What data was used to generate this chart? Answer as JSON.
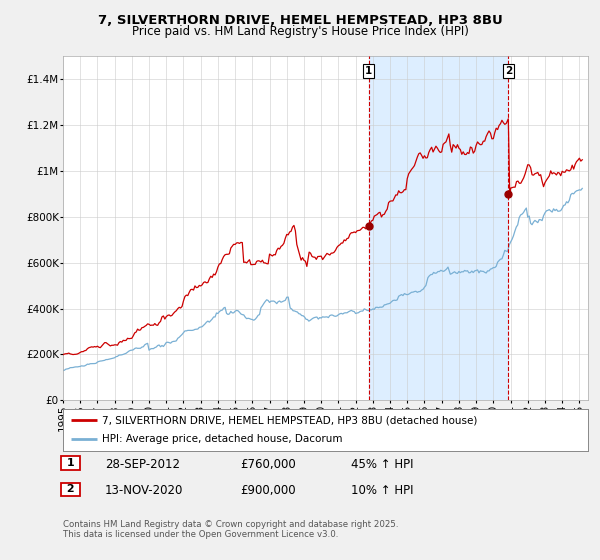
{
  "title_line1": "7, SILVERTHORN DRIVE, HEMEL HEMPSTEAD, HP3 8BU",
  "title_line2": "Price paid vs. HM Land Registry's House Price Index (HPI)",
  "ylim": [
    0,
    1500000
  ],
  "yticks": [
    0,
    200000,
    400000,
    600000,
    800000,
    1000000,
    1200000,
    1400000
  ],
  "ytick_labels": [
    "£0",
    "£200K",
    "£400K",
    "£600K",
    "£800K",
    "£1M",
    "£1.2M",
    "£1.4M"
  ],
  "xlim_start": 1995.0,
  "xlim_end": 2025.5,
  "xticks": [
    1995,
    1996,
    1997,
    1998,
    1999,
    2000,
    2001,
    2002,
    2003,
    2004,
    2005,
    2006,
    2007,
    2008,
    2009,
    2010,
    2011,
    2012,
    2013,
    2014,
    2015,
    2016,
    2017,
    2018,
    2019,
    2020,
    2021,
    2022,
    2023,
    2024,
    2025
  ],
  "line_color_red": "#CC0000",
  "line_color_blue": "#7ab0d4",
  "shade_color": "#ddeeff",
  "vline_color": "#CC0000",
  "transaction1_x": 2012.75,
  "transaction1_y": 760000,
  "transaction2_x": 2020.87,
  "transaction2_y": 900000,
  "legend_red_label": "7, SILVERTHORN DRIVE, HEMEL HEMPSTEAD, HP3 8BU (detached house)",
  "legend_blue_label": "HPI: Average price, detached house, Dacorum",
  "transaction1_date": "28-SEP-2012",
  "transaction1_price": "£760,000",
  "transaction1_hpi": "45% ↑ HPI",
  "transaction2_date": "13-NOV-2020",
  "transaction2_price": "£900,000",
  "transaction2_hpi": "10% ↑ HPI",
  "footnote": "Contains HM Land Registry data © Crown copyright and database right 2025.\nThis data is licensed under the Open Government Licence v3.0.",
  "bg_color": "#f0f0f0",
  "plot_bg_color": "#ffffff",
  "grid_color": "#cccccc"
}
